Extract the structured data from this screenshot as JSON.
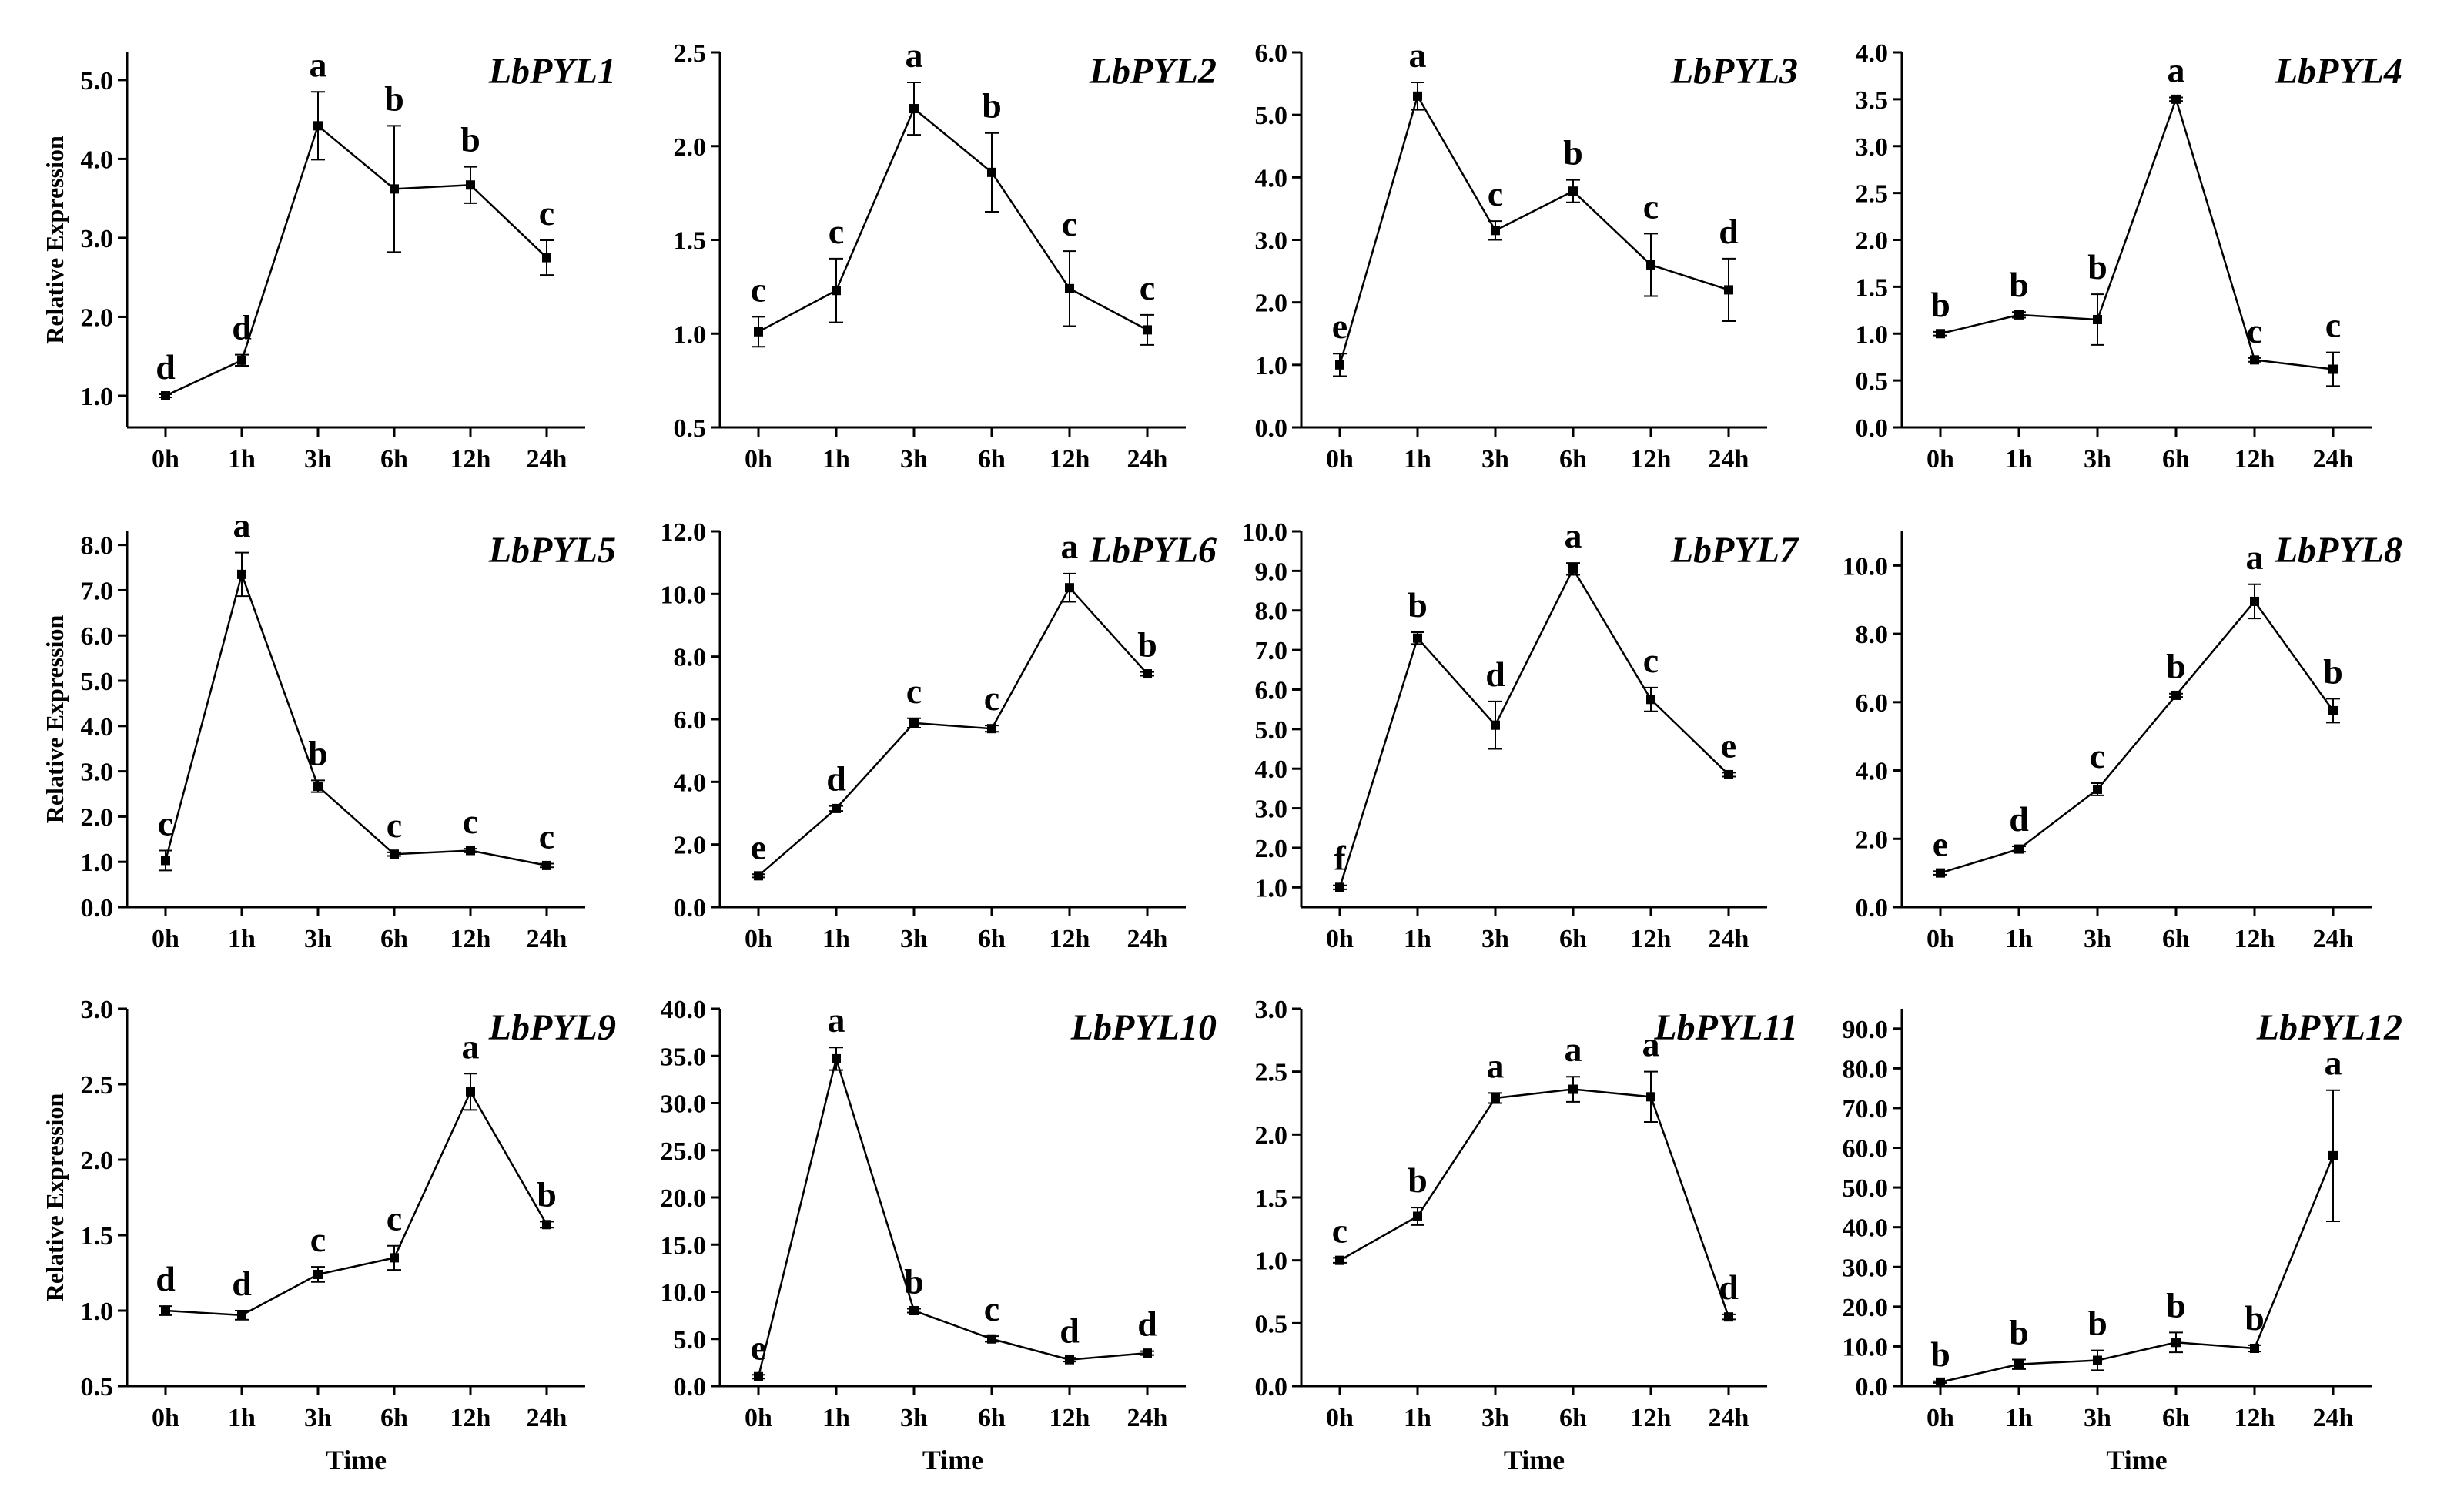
{
  "figure": {
    "x_axis_label": "Time",
    "y_axis_label": "Relative Expression",
    "line_color": "#000000"
  },
  "chart_data": [
    {
      "type": "line",
      "title": "LbPYL1",
      "categories": [
        "0h",
        "1h",
        "3h",
        "6h",
        "12h",
        "24h"
      ],
      "values": [
        1.0,
        1.45,
        4.42,
        3.62,
        3.67,
        2.75
      ],
      "errors": [
        0.02,
        0.07,
        0.43,
        0.8,
        0.23,
        0.22
      ],
      "letters": [
        "d",
        "d",
        "a",
        "b",
        "b",
        "c"
      ],
      "ylim": [
        0.6,
        5.35
      ],
      "yticks": [
        1.0,
        2.0,
        3.0,
        4.0,
        5.0
      ],
      "ytick_labels": [
        "1.0",
        "2.0",
        "3.0",
        "4.0",
        "5.0"
      ],
      "xlabel": "",
      "ylabel": "Relative Expression"
    },
    {
      "type": "line",
      "title": "LbPYL2",
      "categories": [
        "0h",
        "1h",
        "3h",
        "6h",
        "12h",
        "24h"
      ],
      "values": [
        1.01,
        1.23,
        2.2,
        1.86,
        1.24,
        1.02
      ],
      "errors": [
        0.08,
        0.17,
        0.14,
        0.21,
        0.2,
        0.08
      ],
      "letters": [
        "c",
        "c",
        "a",
        "b",
        "c",
        "c"
      ],
      "ylim": [
        0.5,
        2.5
      ],
      "yticks": [
        0.5,
        1.0,
        1.5,
        2.0,
        2.5
      ],
      "ytick_labels": [
        "0.5",
        "1.0",
        "1.5",
        "2.0",
        "2.5"
      ],
      "xlabel": "",
      "ylabel": ""
    },
    {
      "type": "line",
      "title": "LbPYL3",
      "categories": [
        "0h",
        "1h",
        "3h",
        "6h",
        "12h",
        "24h"
      ],
      "values": [
        1.0,
        5.3,
        3.15,
        3.78,
        2.6,
        2.2
      ],
      "errors": [
        0.18,
        0.22,
        0.15,
        0.18,
        0.5,
        0.5
      ],
      "letters": [
        "e",
        "a",
        "c",
        "b",
        "c",
        "d"
      ],
      "ylim": [
        0.0,
        6.0
      ],
      "yticks": [
        0,
        1,
        2,
        3,
        4,
        5,
        6
      ],
      "ytick_labels": [
        "0.0",
        "1.0",
        "2.0",
        "3.0",
        "4.0",
        "5.0",
        "6.0"
      ],
      "xlabel": "",
      "ylabel": ""
    },
    {
      "type": "line",
      "title": "LbPYL4",
      "categories": [
        "0h",
        "1h",
        "3h",
        "6h",
        "12h",
        "24h"
      ],
      "values": [
        1.0,
        1.2,
        1.15,
        3.5,
        0.72,
        0.62
      ],
      "errors": [
        0.02,
        0.03,
        0.27,
        0.02,
        0.02,
        0.18
      ],
      "letters": [
        "b",
        "b",
        "b",
        "a",
        "c",
        "c"
      ],
      "ylim": [
        0.0,
        4.0
      ],
      "yticks": [
        0,
        0.5,
        1,
        1.5,
        2,
        2.5,
        3,
        3.5,
        4
      ],
      "ytick_labels": [
        "0.0",
        "0.5",
        "1.0",
        "1.5",
        "2.0",
        "2.5",
        "3.0",
        "3.5",
        "4.0"
      ],
      "xlabel": "",
      "ylabel": ""
    },
    {
      "type": "line",
      "title": "LbPYL5",
      "categories": [
        "0h",
        "1h",
        "3h",
        "6h",
        "12h",
        "24h"
      ],
      "values": [
        1.03,
        7.35,
        2.67,
        1.17,
        1.25,
        0.92
      ],
      "errors": [
        0.22,
        0.48,
        0.13,
        0.04,
        0.04,
        0.04
      ],
      "letters": [
        "c",
        "a",
        "b",
        "c",
        "c",
        "c"
      ],
      "ylim": [
        0.0,
        8.3
      ],
      "yticks": [
        0,
        1,
        2,
        3,
        4,
        5,
        6,
        7,
        8
      ],
      "ytick_labels": [
        "0.0",
        "1.0",
        "2.0",
        "3.0",
        "4.0",
        "5.0",
        "6.0",
        "7.0",
        "8.0"
      ],
      "xlabel": "",
      "ylabel": "Relative Expression"
    },
    {
      "type": "line",
      "title": "LbPYL6",
      "categories": [
        "0h",
        "1h",
        "3h",
        "6h",
        "12h",
        "24h"
      ],
      "values": [
        1.0,
        3.15,
        5.88,
        5.7,
        10.2,
        7.45
      ],
      "errors": [
        0.05,
        0.08,
        0.15,
        0.1,
        0.45,
        0.06
      ],
      "letters": [
        "e",
        "d",
        "c",
        "c",
        "a",
        "b"
      ],
      "ylim": [
        0.0,
        12.0
      ],
      "yticks": [
        0,
        2,
        4,
        6,
        8,
        10,
        12
      ],
      "ytick_labels": [
        "0.0",
        "2.0",
        "4.0",
        "6.0",
        "8.0",
        "10.0",
        "12.0"
      ],
      "xlabel": "",
      "ylabel": ""
    },
    {
      "type": "line",
      "title": "LbPYL7",
      "categories": [
        "0h",
        "1h",
        "3h",
        "6h",
        "12h",
        "24h"
      ],
      "values": [
        1.0,
        7.3,
        5.1,
        9.05,
        5.75,
        3.85
      ],
      "errors": [
        0.05,
        0.15,
        0.6,
        0.15,
        0.3,
        0.05
      ],
      "letters": [
        "f",
        "b",
        "d",
        "a",
        "c",
        "e"
      ],
      "ylim": [
        0.5,
        10.0
      ],
      "yticks": [
        1,
        2,
        3,
        4,
        5,
        6,
        7,
        8,
        9,
        10
      ],
      "ytick_labels": [
        "1.0",
        "2.0",
        "3.0",
        "4.0",
        "5.0",
        "6.0",
        "7.0",
        "8.0",
        "9.0",
        "10.0"
      ],
      "xlabel": "",
      "ylabel": ""
    },
    {
      "type": "line",
      "title": "LbPYL8",
      "categories": [
        "0h",
        "1h",
        "3h",
        "6h",
        "12h",
        "24h"
      ],
      "values": [
        1.0,
        1.7,
        3.45,
        6.2,
        8.95,
        5.75
      ],
      "errors": [
        0.05,
        0.08,
        0.18,
        0.05,
        0.5,
        0.35
      ],
      "letters": [
        "e",
        "d",
        "c",
        "b",
        "a",
        "b"
      ],
      "ylim": [
        0.0,
        11.0
      ],
      "yticks": [
        0,
        2,
        4,
        6,
        8,
        10
      ],
      "ytick_labels": [
        "0.0",
        "2.0",
        "4.0",
        "6.0",
        "8.0",
        "10.0"
      ],
      "xlabel": "",
      "ylabel": ""
    },
    {
      "type": "line",
      "title": "LbPYL9",
      "categories": [
        "0h",
        "1h",
        "3h",
        "6h",
        "12h",
        "24h"
      ],
      "values": [
        1.0,
        0.97,
        1.24,
        1.35,
        2.45,
        1.57
      ],
      "errors": [
        0.03,
        0.03,
        0.05,
        0.08,
        0.12,
        0.02
      ],
      "letters": [
        "d",
        "d",
        "c",
        "c",
        "a",
        "b"
      ],
      "ylim": [
        0.5,
        3.0
      ],
      "yticks": [
        0.5,
        1.0,
        1.5,
        2.0,
        2.5,
        3.0
      ],
      "ytick_labels": [
        "0.5",
        "1.0",
        "1.5",
        "2.0",
        "2.5",
        "3.0"
      ],
      "xlabel": "Time",
      "ylabel": "Relative Expression"
    },
    {
      "type": "line",
      "title": "LbPYL10",
      "categories": [
        "0h",
        "1h",
        "3h",
        "6h",
        "12h",
        "24h"
      ],
      "values": [
        1.0,
        34.7,
        8.0,
        5.0,
        2.8,
        3.5
      ],
      "errors": [
        0.2,
        1.2,
        0.2,
        0.3,
        0.2,
        0.2
      ],
      "letters": [
        "e",
        "a",
        "b",
        "c",
        "d",
        "d"
      ],
      "ylim": [
        0.0,
        40.0
      ],
      "yticks": [
        0,
        5,
        10,
        15,
        20,
        25,
        30,
        35,
        40
      ],
      "ytick_labels": [
        "0.0",
        "5.0",
        "10.0",
        "15.0",
        "20.0",
        "25.0",
        "30.0",
        "35.0",
        "40.0"
      ],
      "xlabel": "Time",
      "ylabel": ""
    },
    {
      "type": "line",
      "title": "LbPYL11",
      "categories": [
        "0h",
        "1h",
        "3h",
        "6h",
        "12h",
        "24h"
      ],
      "values": [
        1.0,
        1.35,
        2.29,
        2.36,
        2.3,
        0.55
      ],
      "errors": [
        0.02,
        0.07,
        0.04,
        0.1,
        0.2,
        0.02
      ],
      "letters": [
        "c",
        "b",
        "a",
        "a",
        "a",
        "d"
      ],
      "ylim": [
        0.0,
        3.0
      ],
      "yticks": [
        0,
        0.5,
        1,
        1.5,
        2,
        2.5,
        3
      ],
      "ytick_labels": [
        "0.0",
        "0.5",
        "1.0",
        "1.5",
        "2.0",
        "2.5",
        "3.0"
      ],
      "xlabel": "Time",
      "ylabel": ""
    },
    {
      "type": "line",
      "title": "LbPYL12",
      "categories": [
        "0h",
        "1h",
        "3h",
        "6h",
        "12h",
        "24h"
      ],
      "values": [
        1.0,
        5.5,
        6.5,
        11.0,
        9.5,
        58.0
      ],
      "errors": [
        0.2,
        1.2,
        2.5,
        2.5,
        0.8,
        16.5
      ],
      "letters": [
        "b",
        "b",
        "b",
        "b",
        "b",
        "a"
      ],
      "ylim": [
        0.0,
        95.0
      ],
      "yticks": [
        0,
        10,
        20,
        30,
        40,
        50,
        60,
        70,
        80,
        90
      ],
      "ytick_labels": [
        "0.0",
        "10.0",
        "20.0",
        "30.0",
        "40.0",
        "50.0",
        "60.0",
        "70.0",
        "80.0",
        "90.0"
      ],
      "xlabel": "Time",
      "ylabel": ""
    }
  ]
}
